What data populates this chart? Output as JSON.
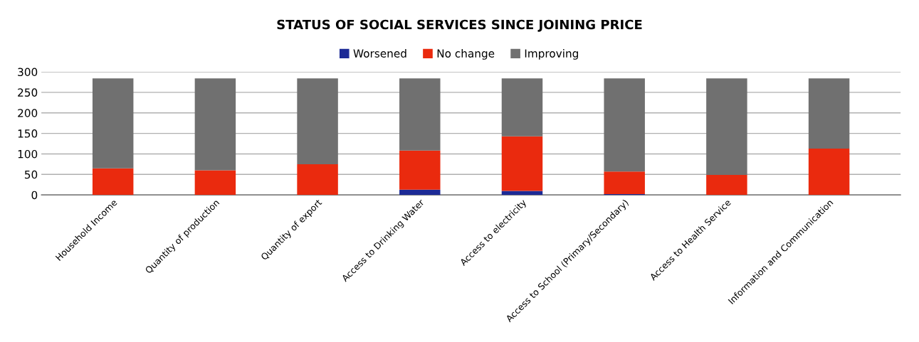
{
  "chart_data": {
    "type": "bar",
    "title": "STATUS OF SOCIAL SERVICES SINCE JOINING PRICE",
    "stacked": true,
    "legend": "top",
    "grid": "y",
    "categories": [
      "Household Income",
      "Quantity of production",
      "Quantity of export",
      "Access to Drinking Water",
      "Access to electricity",
      "Access to School (Primary/Secondary)",
      "Access to Health Service",
      "Information and Communication"
    ],
    "series": [
      {
        "name": "Worsened",
        "color": "#1c2a96",
        "values": [
          0,
          0,
          0,
          13,
          10,
          2,
          0,
          0
        ]
      },
      {
        "name": "No change",
        "color": "#ea2a0e",
        "values": [
          65,
          60,
          75,
          95,
          133,
          55,
          49,
          113
        ]
      },
      {
        "name": "Improving",
        "color": "#707070",
        "values": [
          219,
          224,
          209,
          176,
          141,
          227,
          235,
          171
        ]
      }
    ],
    "ylim": [
      0,
      300
    ],
    "yticks": [
      0,
      50,
      100,
      150,
      200,
      250,
      300
    ]
  }
}
